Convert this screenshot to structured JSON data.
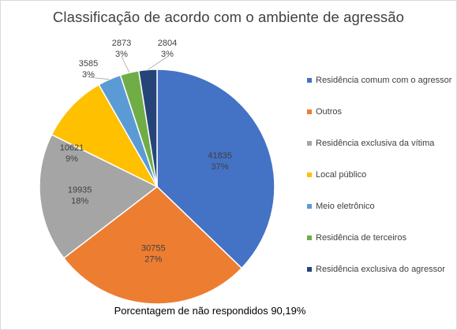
{
  "chart_data": {
    "type": "pie",
    "title": "Classificação de acordo com o ambiente de agressão",
    "categories": [
      "Residência comum com o agressor",
      "Outros",
      "Residência exclusiva da vítima",
      "Local público",
      "Meio eletrônico",
      "Residência de terceiros",
      "Residência exclusiva do agressor"
    ],
    "values": [
      41835,
      30755,
      19935,
      10621,
      3585,
      2873,
      2804
    ],
    "value_labels": [
      "41835",
      "30755",
      "19935",
      "10621",
      "3585",
      "2873",
      "2804"
    ],
    "percent_labels": [
      "37%",
      "27%",
      "18%",
      "9%",
      "3%",
      "3%",
      "3%"
    ],
    "colors": [
      "#4472c4",
      "#ed7d31",
      "#a5a5a5",
      "#ffc000",
      "#5b9bd5",
      "#70ad47",
      "#264478"
    ],
    "legend_position": "right",
    "note": "Porcentagem de não respondidos 90,19%"
  }
}
